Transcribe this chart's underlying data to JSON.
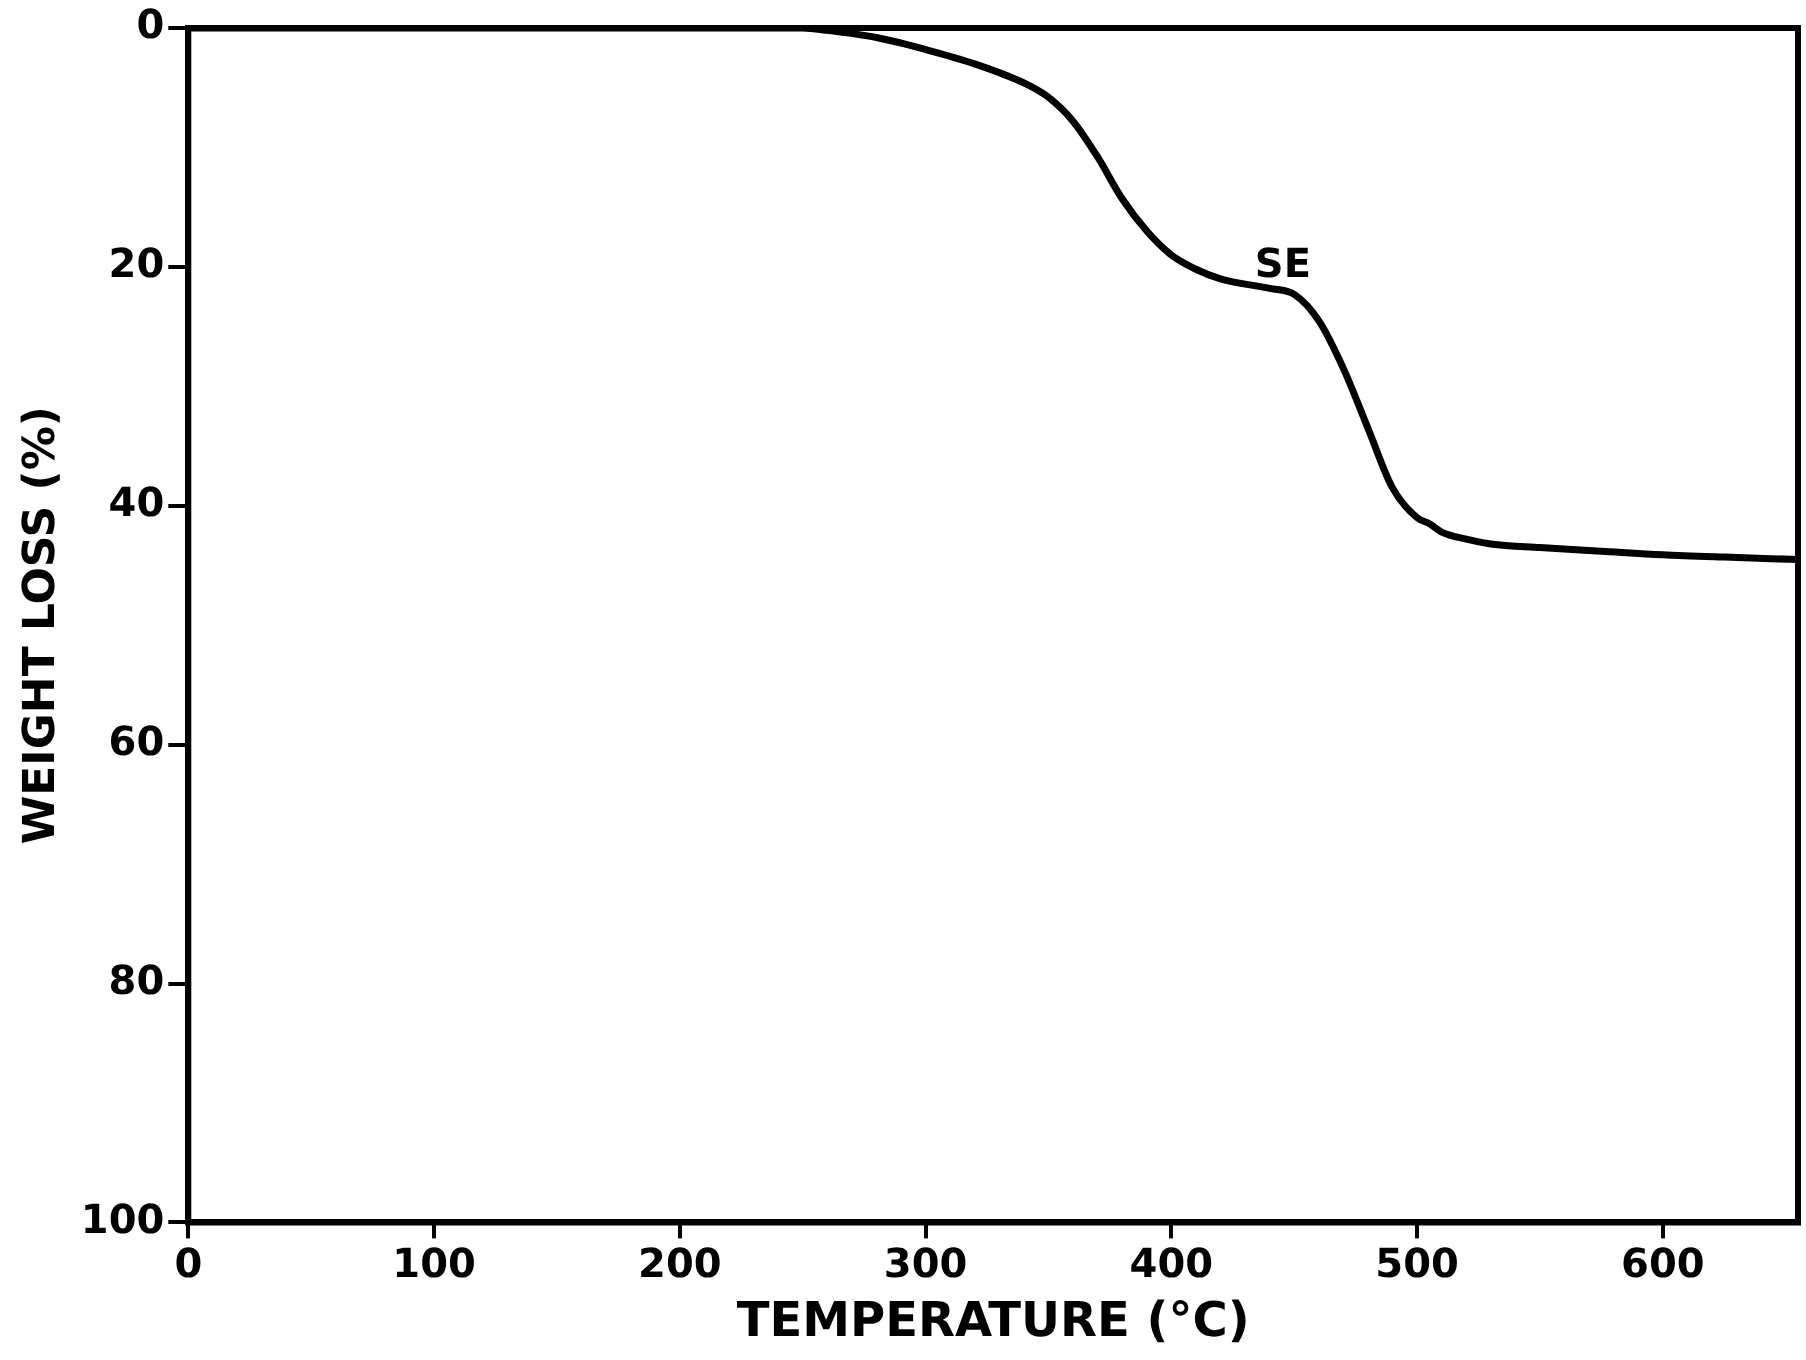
{
  "chart_data": {
    "type": "line",
    "xlabel": "TEMPERATURE (°C)",
    "ylabel": "WEIGHT LOSS (%)",
    "x": [
      0,
      100,
      200,
      250,
      260,
      280,
      300,
      320,
      340,
      350,
      360,
      370,
      380,
      390,
      400,
      410,
      420,
      440,
      450,
      460,
      470,
      480,
      490,
      500,
      505,
      510,
      520,
      530,
      550,
      575,
      600,
      625,
      655
    ],
    "series": [
      {
        "color": "#000000",
        "values": [
          0,
          0,
          0,
          0,
          0.2,
          0.8,
          1.8,
          3,
          4.6,
          5.8,
          7.8,
          10.8,
          14.3,
          17,
          19,
          20.2,
          21,
          21.8,
          22.3,
          24.5,
          28.5,
          33.5,
          38.5,
          41,
          41.5,
          42.2,
          42.8,
          43.2,
          43.5,
          43.8,
          44.1,
          44.3,
          44.5
        ]
      }
    ],
    "annotations": [
      "SE"
    ],
    "xlim": [
      0,
      655
    ],
    "ylim": [
      100,
      0
    ],
    "xticks": [
      0,
      100,
      200,
      300,
      400,
      500,
      600
    ],
    "yticks": [
      0,
      20,
      40,
      60,
      80,
      100
    ],
    "grid": false,
    "legend": false,
    "marker": "none",
    "line_style": "solid"
  }
}
